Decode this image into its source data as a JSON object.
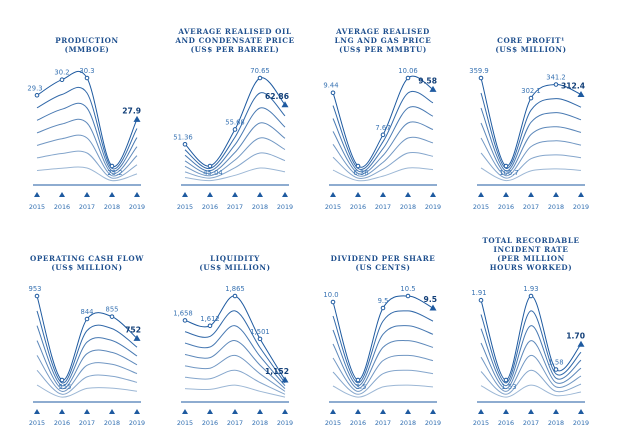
{
  "colors": {
    "title": "#1e4f8e",
    "line": "#1e5aa0",
    "marker": "#1e5aa0",
    "tick": "#2f6db0"
  },
  "chart_data": [
    {
      "type": "line",
      "title": [
        "PRODUCTION",
        "(MMBOE)"
      ],
      "categories": [
        "2015",
        "2016",
        "2017",
        "2018",
        "2019"
      ],
      "values": [
        29.3,
        30.2,
        30.3,
        25.2,
        27.9
      ],
      "labels": [
        "29.3",
        "30.2",
        "30.3",
        "25.2",
        "27.9"
      ]
    },
    {
      "type": "line",
      "title": [
        "AVERAGE REALISED OIL",
        "AND CONDENSATE PRICE",
        "(US$ PER BARREL)"
      ],
      "categories": [
        "2015",
        "2016",
        "2017",
        "2018",
        "2019"
      ],
      "values": [
        51.36,
        45.04,
        55.68,
        70.65,
        62.86
      ],
      "labels": [
        "51.36",
        "45.04",
        "55.68",
        "70.65",
        "62.86"
      ]
    },
    {
      "type": "line",
      "title": [
        "AVERAGE REALISED",
        "LNG AND GAS PRICE",
        "(US$ PER MMBTU)"
      ],
      "categories": [
        "2015",
        "2016",
        "2017",
        "2018",
        "2019"
      ],
      "values": [
        9.44,
        6.36,
        7.67,
        10.06,
        9.58
      ],
      "labels": [
        "9.44",
        "6.36",
        "7.67",
        "10.06",
        "9.58"
      ]
    },
    {
      "type": "line",
      "title": [
        "CORE PROFIT¹",
        "(US$ MILLION)"
      ],
      "categories": [
        "2015",
        "2016",
        "2017",
        "2018",
        "2019"
      ],
      "values": [
        359.9,
        106.7,
        302.1,
        341.2,
        312.4
      ],
      "labels": [
        "359.9",
        "106.7",
        "302.1",
        "341.2",
        "312.4"
      ]
    },
    {
      "type": "line",
      "title": [
        "OPERATING CASH FLOW",
        "(US$ MILLION)"
      ],
      "categories": [
        "2015",
        "2016",
        "2017",
        "2018",
        "2019"
      ],
      "values": [
        953,
        555,
        844,
        855,
        752
      ],
      "labels": [
        "953",
        "555",
        "844",
        "855",
        "752"
      ]
    },
    {
      "type": "line",
      "title": [
        "LIQUIDITY",
        "(US$ MILLION)"
      ],
      "categories": [
        "2015",
        "2016",
        "2017",
        "2018",
        "2019"
      ],
      "values": [
        1658,
        1612,
        1865,
        1501,
        1152
      ],
      "labels": [
        "1,658",
        "1,612",
        "1,865",
        "1,501",
        "1,152"
      ]
    },
    {
      "type": "line",
      "title": [
        "DIVIDEND PER SHARE",
        "(US CENTS)"
      ],
      "categories": [
        "2015",
        "2016",
        "2017",
        "2018",
        "2019"
      ],
      "values": [
        10.0,
        3.5,
        9.5,
        10.5,
        9.5
      ],
      "labels": [
        "10.0",
        "3.5",
        "9.5",
        "10.5",
        "9.5"
      ]
    },
    {
      "type": "line",
      "title": [
        "TOTAL RECORDABLE",
        "INCIDENT RATE",
        "(PER MILLION",
        "HOURS WORKED)"
      ],
      "categories": [
        "2015",
        "2016",
        "2017",
        "2018",
        "2019"
      ],
      "values": [
        1.91,
        1.53,
        1.93,
        1.58,
        1.7
      ],
      "labels": [
        "1.91",
        "1.53",
        "1.93",
        "1.58",
        "1.70"
      ]
    }
  ]
}
